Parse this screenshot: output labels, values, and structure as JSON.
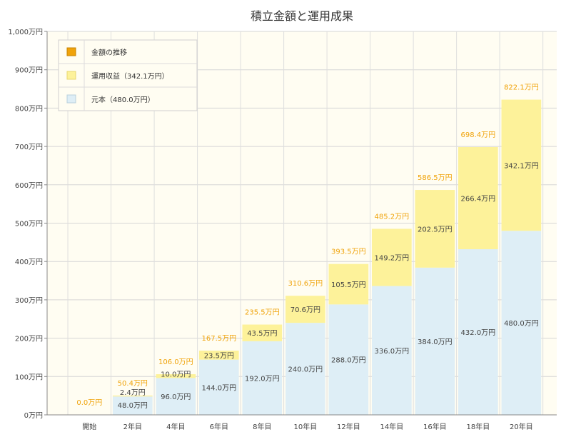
{
  "chart_data": {
    "type": "bar",
    "title": "積立金額と運用成果",
    "categories": [
      "開始",
      "2年目",
      "4年目",
      "6年目",
      "8年目",
      "10年目",
      "12年目",
      "14年目",
      "16年目",
      "18年目",
      "20年目"
    ],
    "series": [
      {
        "name": "元本（480.0万円）",
        "values": [
          0,
          48.0,
          96.0,
          144.0,
          192.0,
          240.0,
          288.0,
          336.0,
          384.0,
          432.0,
          480.0
        ],
        "labels": [
          "",
          "48.0万円",
          "96.0万円",
          "144.0万円",
          "192.0万円",
          "240.0万円",
          "288.0万円",
          "336.0万円",
          "384.0万円",
          "432.0万円",
          "480.0万円"
        ]
      },
      {
        "name": "運用収益（342.1万円）",
        "values": [
          0,
          2.4,
          10.0,
          23.5,
          43.5,
          70.6,
          105.5,
          149.2,
          202.5,
          266.4,
          342.1
        ],
        "labels": [
          "",
          "2.4万円",
          "10.0万円",
          "23.5万円",
          "43.5万円",
          "70.6万円",
          "105.5万円",
          "149.2万円",
          "202.5万円",
          "266.4万円",
          "342.1万円"
        ]
      }
    ],
    "totals": {
      "name": "金額の推移",
      "values": [
        0.0,
        50.4,
        106.0,
        167.5,
        235.5,
        310.6,
        393.5,
        485.2,
        586.5,
        698.4,
        822.1
      ],
      "labels": [
        "0.0万円",
        "50.4万円",
        "106.0万円",
        "167.5万円",
        "235.5万円",
        "310.6万円",
        "393.5万円",
        "485.2万円",
        "586.5万円",
        "698.4万円",
        "822.1万円"
      ]
    },
    "ylim": [
      0,
      1000
    ],
    "yticks": [
      0,
      100,
      200,
      300,
      400,
      500,
      600,
      700,
      800,
      900,
      1000
    ],
    "ytick_labels": [
      "0万円",
      "100万円",
      "200万円",
      "300万円",
      "400万円",
      "500万円",
      "600万円",
      "700万円",
      "800万円",
      "900万円",
      "1,000万円"
    ],
    "grid": true,
    "legend_position": "top-left",
    "colors": {
      "principal": "#deeef6",
      "returns": "#fdf29a",
      "total": "#f0a30a",
      "plot_bg": "#fffdf2"
    }
  }
}
